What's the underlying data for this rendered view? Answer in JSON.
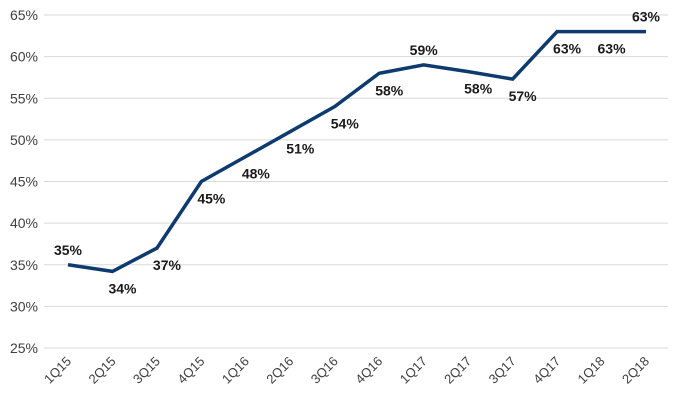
{
  "chart_data": {
    "type": "line",
    "title": "",
    "xlabel": "",
    "ylabel": "",
    "categories": [
      "1Q15",
      "2Q15",
      "3Q15",
      "4Q15",
      "1Q16",
      "2Q16",
      "3Q16",
      "4Q16",
      "1Q17",
      "2Q17",
      "3Q17",
      "4Q17",
      "1Q18",
      "2Q18"
    ],
    "series": [
      {
        "values": [
          35,
          34.2,
          37,
          45,
          48,
          51,
          54,
          58,
          59,
          58.2,
          57.3,
          63,
          63,
          63
        ],
        "labels": [
          "35%",
          "34%",
          "37%",
          "45%",
          "48%",
          "51%",
          "54%",
          "58%",
          "59%",
          "58%",
          "57%",
          "63%",
          "63%",
          "63%"
        ],
        "color": "#0d3b6e"
      }
    ],
    "ylim": [
      25,
      65
    ],
    "yticks": [
      25,
      30,
      35,
      40,
      45,
      50,
      55,
      60,
      65
    ],
    "ytick_labels": [
      "25%",
      "30%",
      "35%",
      "40%",
      "45%",
      "50%",
      "55%",
      "60%",
      "65%"
    ],
    "grid": true,
    "legend": "none"
  }
}
